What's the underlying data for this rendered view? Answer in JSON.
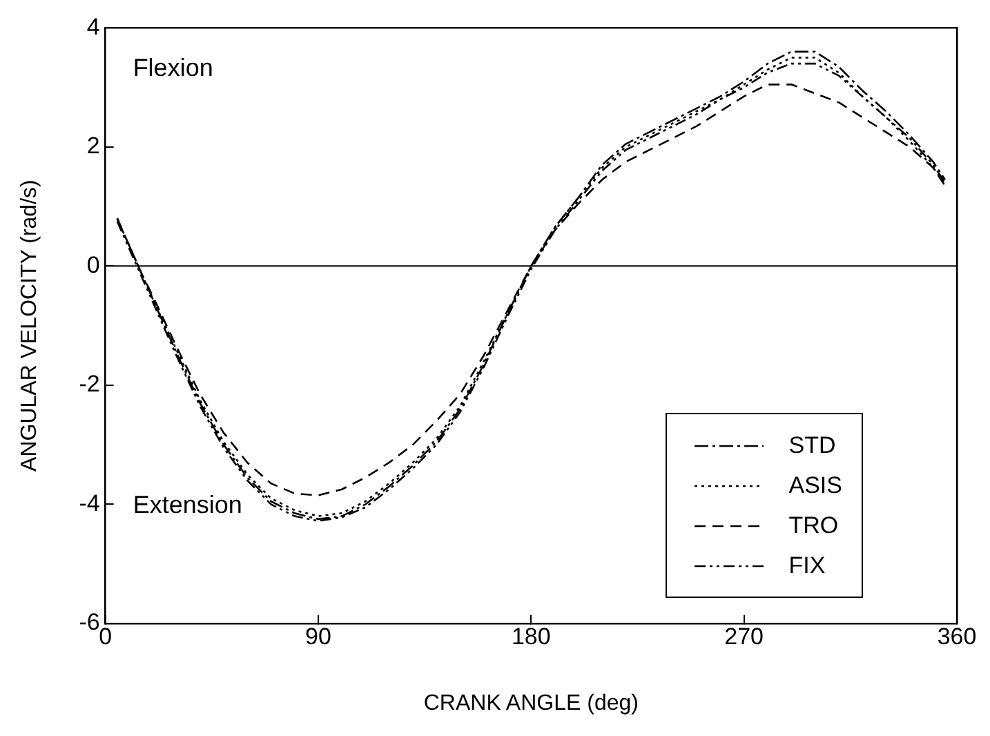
{
  "chart_data": {
    "type": "line",
    "xlabel": "CRANK ANGLE (deg)",
    "ylabel": "ANGULAR VELOCITY (rad/s)",
    "annotations": [
      "Flexion",
      "Extension"
    ],
    "x": [
      5,
      10,
      15,
      20,
      30,
      40,
      50,
      60,
      70,
      80,
      90,
      100,
      110,
      120,
      130,
      140,
      150,
      160,
      170,
      180,
      190,
      200,
      210,
      220,
      230,
      240,
      250,
      260,
      270,
      280,
      290,
      300,
      310,
      320,
      330,
      340,
      350,
      355
    ],
    "series": [
      {
        "name": "STD",
        "color": "#000000",
        "line_style": "dashdot",
        "values": [
          0.8,
          0.35,
          -0.1,
          -0.55,
          -1.45,
          -2.3,
          -3.0,
          -3.55,
          -3.95,
          -4.15,
          -4.25,
          -4.2,
          -4.0,
          -3.7,
          -3.35,
          -2.95,
          -2.4,
          -1.65,
          -0.8,
          0.0,
          0.65,
          1.15,
          1.7,
          2.05,
          2.25,
          2.45,
          2.65,
          2.85,
          3.1,
          3.4,
          3.6,
          3.6,
          3.35,
          2.95,
          2.6,
          2.2,
          1.75,
          1.45
        ]
      },
      {
        "name": "ASIS",
        "color": "#000000",
        "line_style": "dotted",
        "values": [
          0.8,
          0.35,
          -0.1,
          -0.55,
          -1.4,
          -2.25,
          -2.95,
          -3.5,
          -3.9,
          -4.1,
          -4.2,
          -4.15,
          -3.95,
          -3.65,
          -3.3,
          -2.9,
          -2.35,
          -1.6,
          -0.8,
          0.0,
          0.65,
          1.15,
          1.65,
          2.0,
          2.2,
          2.4,
          2.6,
          2.8,
          3.05,
          3.3,
          3.5,
          3.5,
          3.25,
          2.85,
          2.5,
          2.1,
          1.65,
          1.4
        ]
      },
      {
        "name": "TRO",
        "color": "#000000",
        "line_style": "dashed",
        "values": [
          0.8,
          0.35,
          -0.1,
          -0.5,
          -1.35,
          -2.15,
          -2.8,
          -3.3,
          -3.65,
          -3.82,
          -3.85,
          -3.75,
          -3.55,
          -3.3,
          -3.0,
          -2.6,
          -2.15,
          -1.5,
          -0.75,
          0.0,
          0.6,
          1.05,
          1.45,
          1.75,
          1.95,
          2.15,
          2.35,
          2.6,
          2.85,
          3.05,
          3.05,
          2.9,
          2.75,
          2.5,
          2.25,
          2.0,
          1.65,
          1.35
        ]
      },
      {
        "name": "FIX",
        "color": "#000000",
        "line_style": "dashdotdot",
        "values": [
          0.75,
          0.3,
          -0.15,
          -0.6,
          -1.5,
          -2.35,
          -3.05,
          -3.6,
          -4.0,
          -4.2,
          -4.28,
          -4.22,
          -4.05,
          -3.75,
          -3.4,
          -3.0,
          -2.45,
          -1.7,
          -0.85,
          -0.05,
          0.6,
          1.1,
          1.6,
          1.95,
          2.15,
          2.35,
          2.55,
          2.8,
          3.0,
          3.25,
          3.4,
          3.4,
          3.2,
          2.85,
          2.5,
          2.15,
          1.7,
          1.4
        ]
      }
    ],
    "xlim": [
      0,
      360
    ],
    "xticks": [
      0,
      90,
      180,
      270,
      360
    ],
    "ylim": [
      -6,
      4
    ],
    "yticks": [
      -6,
      -4,
      -2,
      0,
      2,
      4
    ],
    "ref_lines": [
      {
        "axis": "y",
        "value": 0,
        "color": "#000000",
        "line_style": "solid"
      }
    ],
    "grid": false,
    "legend": "bottom right",
    "marker": "none"
  }
}
